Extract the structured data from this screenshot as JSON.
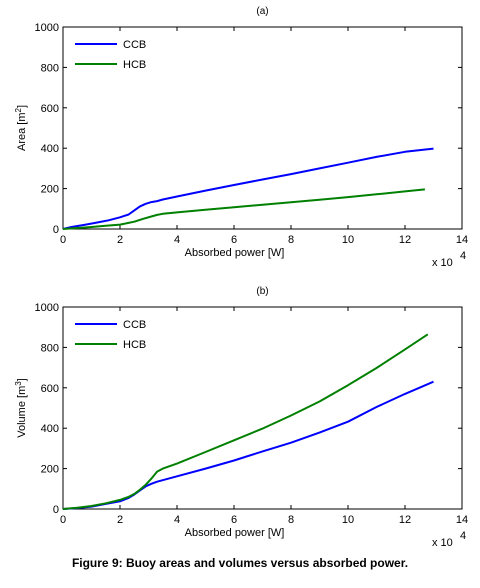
{
  "figure": {
    "caption": "Figure 9: Buoy areas and volumes versus absorbed power."
  },
  "chart_data": [
    {
      "type": "line",
      "panel_label": "(a)",
      "xlabel": "Absorbed power [W]",
      "ylabel_main": "Area [m",
      "ylabel_sup": "2",
      "ylabel_end": "]",
      "xlim": [
        0,
        140000
      ],
      "ylim": [
        0,
        1000
      ],
      "x_tick_values": [
        0,
        20000,
        40000,
        60000,
        80000,
        100000,
        120000,
        140000
      ],
      "x_tick_labels": [
        "0",
        "2",
        "4",
        "6",
        "8",
        "10",
        "12",
        "14"
      ],
      "y_tick_values": [
        0,
        200,
        400,
        600,
        800,
        1000
      ],
      "y_tick_labels": [
        "0",
        "200",
        "400",
        "600",
        "800",
        "1000"
      ],
      "x_multiplier_base": "x 10",
      "x_multiplier_exp": "4",
      "legend_position": "top-left",
      "series": [
        {
          "name": "CCB",
          "color": "#0000ff",
          "x": [
            0,
            3000,
            8000,
            12000,
            16000,
            20000,
            23000,
            25000,
            27000,
            29000,
            31000,
            33000,
            35000,
            40000,
            50000,
            60000,
            70000,
            80000,
            90000,
            100000,
            110000,
            120000,
            130000
          ],
          "y": [
            0,
            10,
            22,
            32,
            43,
            58,
            72,
            92,
            112,
            125,
            133,
            138,
            146,
            161,
            190,
            218,
            245,
            272,
            300,
            328,
            357,
            382,
            398
          ]
        },
        {
          "name": "HCB",
          "color": "#008000",
          "x": [
            0,
            5000,
            10000,
            15000,
            20000,
            25000,
            28000,
            31000,
            33000,
            35000,
            40000,
            50000,
            60000,
            70000,
            80000,
            90000,
            100000,
            110000,
            120000,
            127000
          ],
          "y": [
            0,
            5,
            10,
            16,
            22,
            36,
            50,
            62,
            70,
            75,
            82,
            95,
            108,
            120,
            132,
            145,
            158,
            172,
            186,
            196
          ]
        }
      ]
    },
    {
      "type": "line",
      "panel_label": "(b)",
      "xlabel": "Absorbed power [W]",
      "ylabel_main": "Volume [m",
      "ylabel_sup": "3",
      "ylabel_end": "]",
      "xlim": [
        0,
        140000
      ],
      "ylim": [
        0,
        1000
      ],
      "x_tick_values": [
        0,
        20000,
        40000,
        60000,
        80000,
        100000,
        120000,
        140000
      ],
      "x_tick_labels": [
        "0",
        "2",
        "4",
        "6",
        "8",
        "10",
        "12",
        "14"
      ],
      "y_tick_values": [
        0,
        200,
        400,
        600,
        800,
        1000
      ],
      "y_tick_labels": [
        "0",
        "200",
        "400",
        "600",
        "800",
        "1000"
      ],
      "x_multiplier_base": "x 10",
      "x_multiplier_exp": "4",
      "legend_position": "top-left",
      "series": [
        {
          "name": "CCB",
          "color": "#0000ff",
          "x": [
            0,
            5000,
            10000,
            15000,
            20000,
            23000,
            25000,
            27000,
            29000,
            31000,
            33000,
            40000,
            50000,
            60000,
            70000,
            80000,
            90000,
            100000,
            110000,
            120000,
            130000
          ],
          "y": [
            0,
            5,
            12,
            25,
            38,
            55,
            72,
            92,
            112,
            125,
            135,
            162,
            200,
            240,
            285,
            328,
            378,
            432,
            505,
            570,
            630
          ]
        },
        {
          "name": "HCB",
          "color": "#008000",
          "x": [
            0,
            5000,
            10000,
            15000,
            20000,
            23000,
            25000,
            27000,
            29000,
            31000,
            33000,
            35000,
            40000,
            50000,
            60000,
            70000,
            80000,
            90000,
            100000,
            110000,
            120000,
            128000
          ],
          "y": [
            0,
            6,
            15,
            28,
            45,
            60,
            75,
            95,
            120,
            150,
            185,
            200,
            225,
            282,
            340,
            398,
            463,
            532,
            613,
            698,
            790,
            865
          ]
        }
      ]
    }
  ]
}
